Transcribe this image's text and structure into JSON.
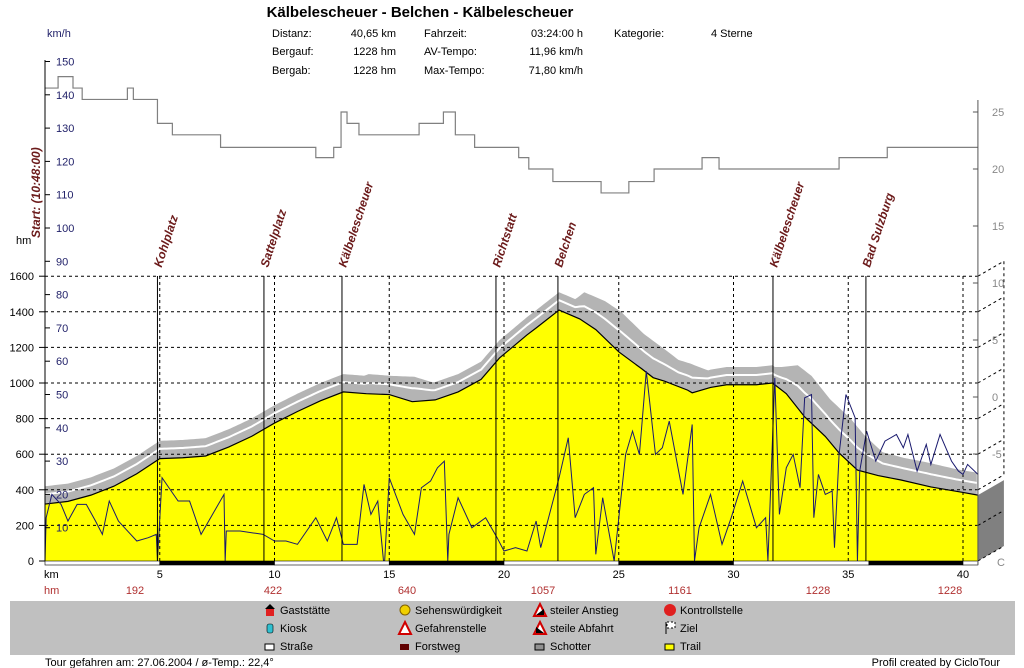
{
  "header": {
    "title": "Kälbelescheuer - Belchen - Kälbelescheuer",
    "col1": [
      {
        "label": "Distanz:",
        "value": "40,65 km"
      },
      {
        "label": "Bergauf:",
        "value": "1228 hm"
      },
      {
        "label": "Bergab:",
        "value": "1228 hm"
      }
    ],
    "col2": [
      {
        "label": "Fahrzeit:",
        "value": "03:24:00 h"
      },
      {
        "label": "AV-Tempo:",
        "value": "11,96 km/h"
      },
      {
        "label": "Max-Tempo:",
        "value": "71,80 km/h"
      }
    ],
    "col3": [
      {
        "label": "Kategorie:",
        "value": "4 Sterne"
      }
    ]
  },
  "chart_data": {
    "type": "area",
    "title": "Kälbelescheuer - Belchen - Kälbelescheuer",
    "x_axis": {
      "unit_label": "km",
      "ticks": [
        5,
        10,
        15,
        20,
        25,
        30,
        35,
        40
      ],
      "range": [
        0,
        40.65
      ]
    },
    "y_axis_elevation": {
      "unit_label": "hm",
      "ticks": [
        0,
        200,
        400,
        600,
        800,
        1000,
        1200,
        1400,
        1600
      ],
      "range": [
        0,
        1600
      ]
    },
    "y_axis_speed": {
      "unit_label": "km/h",
      "ticks": [
        10,
        20,
        30,
        40,
        50,
        60,
        70,
        80,
        90,
        100,
        110,
        120,
        130,
        140,
        150
      ],
      "range": [
        0,
        150
      ]
    },
    "y_axis_temperature": {
      "unit_label": "C",
      "ticks": [
        -5,
        0,
        5,
        10,
        15,
        20,
        25
      ]
    },
    "grid": true,
    "elevation": {
      "km": [
        0,
        1,
        2,
        3,
        4,
        5,
        6,
        7,
        8,
        9,
        10,
        11,
        12,
        13,
        14,
        15,
        16,
        17,
        18,
        19,
        19.8,
        21,
        21.4,
        22.4,
        23.3,
        24,
        25,
        26,
        26.5,
        27,
        28,
        28.2,
        29,
        29.7,
        31,
        31.7,
        32.3,
        33.1,
        34,
        34.6,
        35.4,
        36.3,
        37.3,
        38.6,
        40,
        40.65
      ],
      "hm": [
        320,
        335,
        370,
        420,
        490,
        575,
        580,
        590,
        640,
        700,
        775,
        840,
        900,
        950,
        940,
        935,
        895,
        905,
        950,
        1020,
        1140,
        1270,
        1309,
        1410,
        1360,
        1300,
        1175,
        1080,
        1030,
        1010,
        960,
        945,
        975,
        990,
        990,
        1000,
        940,
        810,
        700,
        607,
        511,
        480,
        455,
        416,
        385,
        370
      ]
    },
    "speed": {
      "km": [
        0,
        0.05,
        0.3,
        0.7,
        1,
        1.4,
        1.8,
        2.2,
        2.5,
        2.8,
        3.2,
        3.6,
        4,
        4.5,
        4.85,
        4.9,
        5.1,
        5.4,
        5.8,
        6.3,
        6.8,
        7.3,
        7.8,
        7.85,
        7.9,
        8.5,
        9.5,
        10,
        10.5,
        11,
        11.8,
        12.3,
        12.7,
        13,
        13.6,
        13.9,
        14.2,
        14.5,
        14.75,
        14.8,
        15,
        15.6,
        16.1,
        16.4,
        16.8,
        17.1,
        17.4,
        17.55,
        17.6,
        18,
        18.6,
        19.2,
        19.7,
        20,
        20.5,
        21,
        21.4,
        21.6,
        22.4,
        22.8,
        23.1,
        23.5,
        23.9,
        24,
        24.3,
        24.8,
        25.3,
        25.6,
        25.9,
        26.2,
        26.6,
        26.9,
        27.2,
        27.8,
        28.2,
        28.3,
        28.5,
        29,
        29.5,
        29.9,
        30.4,
        31,
        31.4,
        31.5,
        31.8,
        32,
        32.3,
        32.6,
        32.9,
        33.1,
        33.4,
        33.5,
        33.7,
        34,
        34.3,
        34.4,
        34.6,
        34.9,
        35.3,
        35.4,
        35.5,
        35.8,
        36.2,
        36.6,
        37.1,
        37.4,
        37.6,
        38,
        38.4,
        38.6,
        39,
        39.5,
        39.8,
        40,
        40.2,
        40.65
      ],
      "kmh": [
        0,
        13,
        20,
        17,
        12,
        17,
        17,
        12,
        8,
        18,
        12,
        9,
        6,
        7,
        8,
        0,
        25,
        22,
        18,
        18,
        8,
        14,
        20,
        0,
        9,
        9,
        8,
        6,
        6,
        5,
        13,
        6,
        13,
        5,
        5,
        23,
        14,
        18,
        0,
        0,
        25,
        14,
        8,
        22,
        24,
        28,
        30,
        0,
        8,
        19,
        10,
        13,
        7,
        3,
        4,
        3,
        12,
        4,
        25,
        37,
        13,
        20,
        22,
        2,
        19,
        0,
        32,
        39,
        32,
        57,
        32,
        34,
        42,
        20,
        41,
        0,
        10,
        20,
        5,
        13,
        24,
        10,
        13,
        0,
        55,
        14,
        28,
        32,
        22,
        49,
        50,
        13,
        26,
        20,
        21,
        4,
        32,
        50,
        43,
        0,
        27,
        39,
        30,
        36,
        38,
        34,
        38,
        27,
        35,
        29,
        38,
        30,
        27,
        26,
        29,
        26
      ]
    },
    "temperature_steps": {
      "km_start": [
        0,
        0.57,
        1.22,
        1.62,
        3.59,
        3.85,
        4.9,
        5.55,
        7.65,
        11.8,
        12.58,
        12.9,
        13.16,
        13.68,
        16.3,
        17.36,
        17.88,
        18.72,
        20.64,
        21.08,
        22.13,
        24.23,
        25.44,
        26.54,
        28.63,
        29.37,
        34.6,
        36.7
      ],
      "deg_c": [
        27.1,
        28.1,
        27.1,
        26.1,
        27.1,
        26.1,
        24.0,
        23.0,
        21.9,
        21.0,
        21.9,
        25.0,
        24.0,
        23.0,
        24.0,
        25.0,
        23.0,
        21.9,
        21.0,
        20.0,
        18.9,
        17.9,
        18.9,
        20.0,
        21.0,
        20.0,
        21.0,
        21.9
      ]
    },
    "waypoints": [
      {
        "name": "Start: (10:48:00)",
        "km": 0
      },
      {
        "name": "Kohlplatz",
        "km": 4.9
      },
      {
        "name": "Sattelplatz",
        "km": 9.54
      },
      {
        "name": "Kälbelescheuer",
        "km": 12.94
      },
      {
        "name": "Richtstatt",
        "km": 19.65
      },
      {
        "name": "Belchen",
        "km": 22.35
      },
      {
        "name": "Kälbelescheuer",
        "km": 31.72
      },
      {
        "name": "Bad Sulzburg",
        "km": 35.77
      }
    ],
    "surface": [
      {
        "type": "Straße",
        "from": 0,
        "to": 5
      },
      {
        "type": "Forstweg",
        "from": 5,
        "to": 10
      },
      {
        "type": "Straße",
        "from": 10,
        "to": 15
      },
      {
        "type": "Forstweg",
        "from": 15,
        "to": 20
      },
      {
        "type": "Straße",
        "from": 20,
        "to": 25
      },
      {
        "type": "Forstweg",
        "from": 25,
        "to": 30
      },
      {
        "type": "Straße",
        "from": 30,
        "to": 35.9
      },
      {
        "type": "Forstweg",
        "from": 35.9,
        "to": 40
      },
      {
        "type": "Straße",
        "from": 40,
        "to": 40.65
      }
    ],
    "climb_row": {
      "label": "hm",
      "values": [
        "192",
        "422",
        "640",
        "1057",
        "1161",
        "1228",
        "1228"
      ]
    },
    "colors": {
      "elevation_fill": "#ffff00",
      "speed_line": "#1a1a6e",
      "temperature_line": "#808080",
      "band": "#b4b4b4",
      "waypoint_label": "#6b1a1a",
      "climb_label": "#b03030"
    }
  },
  "legend": {
    "items": [
      {
        "label": "Gaststätte",
        "icon": "house-icon"
      },
      {
        "label": "Kiosk",
        "icon": "kiosk-icon"
      },
      {
        "label": "Straße",
        "icon": "road-swatch-icon"
      },
      {
        "label": "Sehenswürdigkeit",
        "icon": "smiley-icon"
      },
      {
        "label": "Gefahrenstelle",
        "icon": "warning-icon"
      },
      {
        "label": "Forstweg",
        "icon": "forest-road-swatch-icon"
      },
      {
        "label": "steiler Anstieg",
        "icon": "steep-climb-icon"
      },
      {
        "label": "steile Abfahrt",
        "icon": "steep-descent-icon"
      },
      {
        "label": "Schotter",
        "icon": "gravel-swatch-icon"
      },
      {
        "label": "Kontrollstelle",
        "icon": "stop-sign-icon"
      },
      {
        "label": "Ziel",
        "icon": "finish-flag-icon"
      },
      {
        "label": "Trail",
        "icon": "trail-swatch-icon"
      }
    ]
  },
  "footer": {
    "left": "Tour gefahren am: 27.06.2004  /  ø-Temp.: 22,4°",
    "right": "Profil created by CicloTour"
  }
}
